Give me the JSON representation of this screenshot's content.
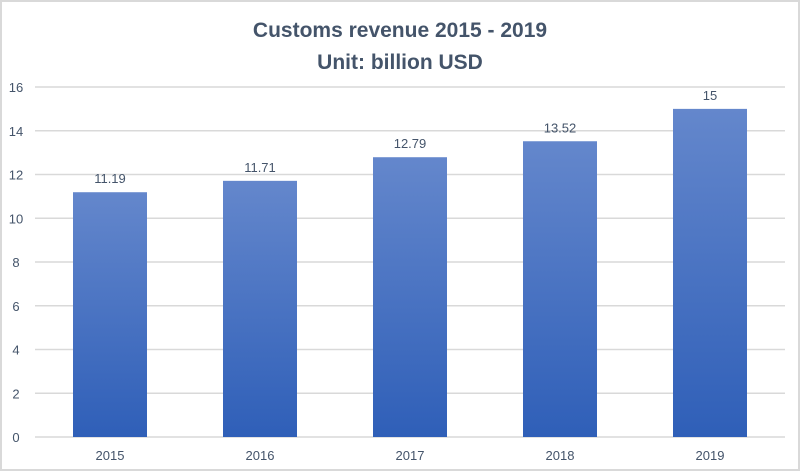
{
  "chart_data": {
    "type": "bar",
    "title": "Customs revenue 2015 - 2019",
    "subtitle": "Unit: billion USD",
    "xlabel": "",
    "ylabel": "",
    "categories": [
      "2015",
      "2016",
      "2017",
      "2018",
      "2019"
    ],
    "values": [
      11.19,
      11.71,
      12.79,
      13.52,
      15
    ],
    "value_labels": [
      "11.19",
      "11.71",
      "12.79",
      "13.52",
      "15"
    ],
    "ylim": [
      0,
      16
    ],
    "yticks": [
      0,
      2,
      4,
      6,
      8,
      10,
      12,
      14,
      16
    ],
    "grid": true,
    "legend": "none",
    "colors": {
      "bar_top": "#6487cc",
      "bar_bottom": "#2f5fb8",
      "text": "#44546a",
      "grid": "#d9d9d9"
    }
  }
}
